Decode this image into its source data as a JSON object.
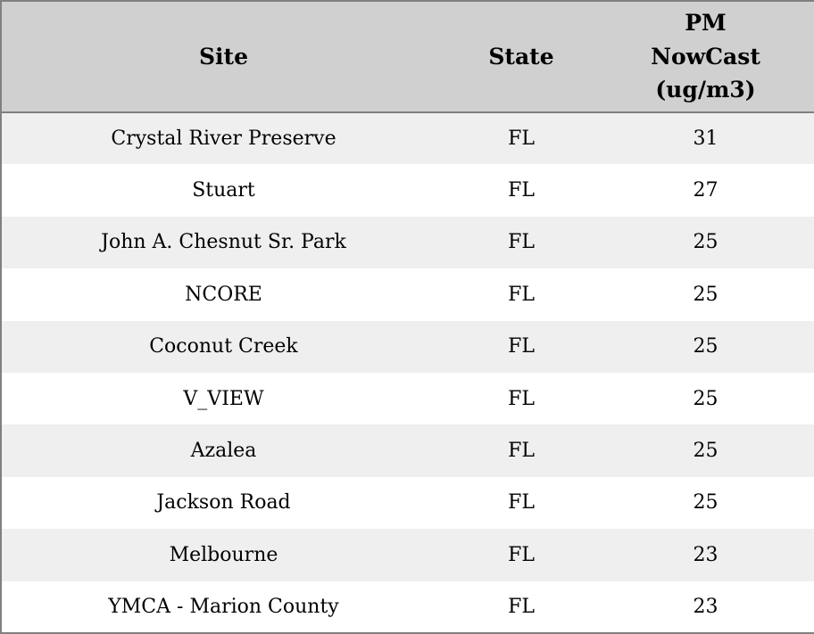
{
  "chart_data": {
    "type": "table",
    "title": "",
    "columns": [
      "Site",
      "State",
      "PM NowCast (ug/m3)"
    ],
    "rows": [
      [
        "Crystal River Preserve",
        "FL",
        31
      ],
      [
        "Stuart",
        "FL",
        27
      ],
      [
        "John A. Chesnut Sr. Park",
        "FL",
        25
      ],
      [
        "NCORE",
        "FL",
        25
      ],
      [
        "Coconut Creek",
        "FL",
        25
      ],
      [
        "V_VIEW",
        "FL",
        25
      ],
      [
        "Azalea",
        "FL",
        25
      ],
      [
        "Jackson Road",
        "FL",
        25
      ],
      [
        "Melbourne",
        "FL",
        23
      ],
      [
        "YMCA - Marion County",
        "FL",
        23
      ]
    ]
  },
  "colors": {
    "header_bg": "#d0d0d0",
    "row_alt_bg": "#efefef",
    "row_bg": "#ffffff",
    "border": "#808080",
    "text": "#000000"
  }
}
